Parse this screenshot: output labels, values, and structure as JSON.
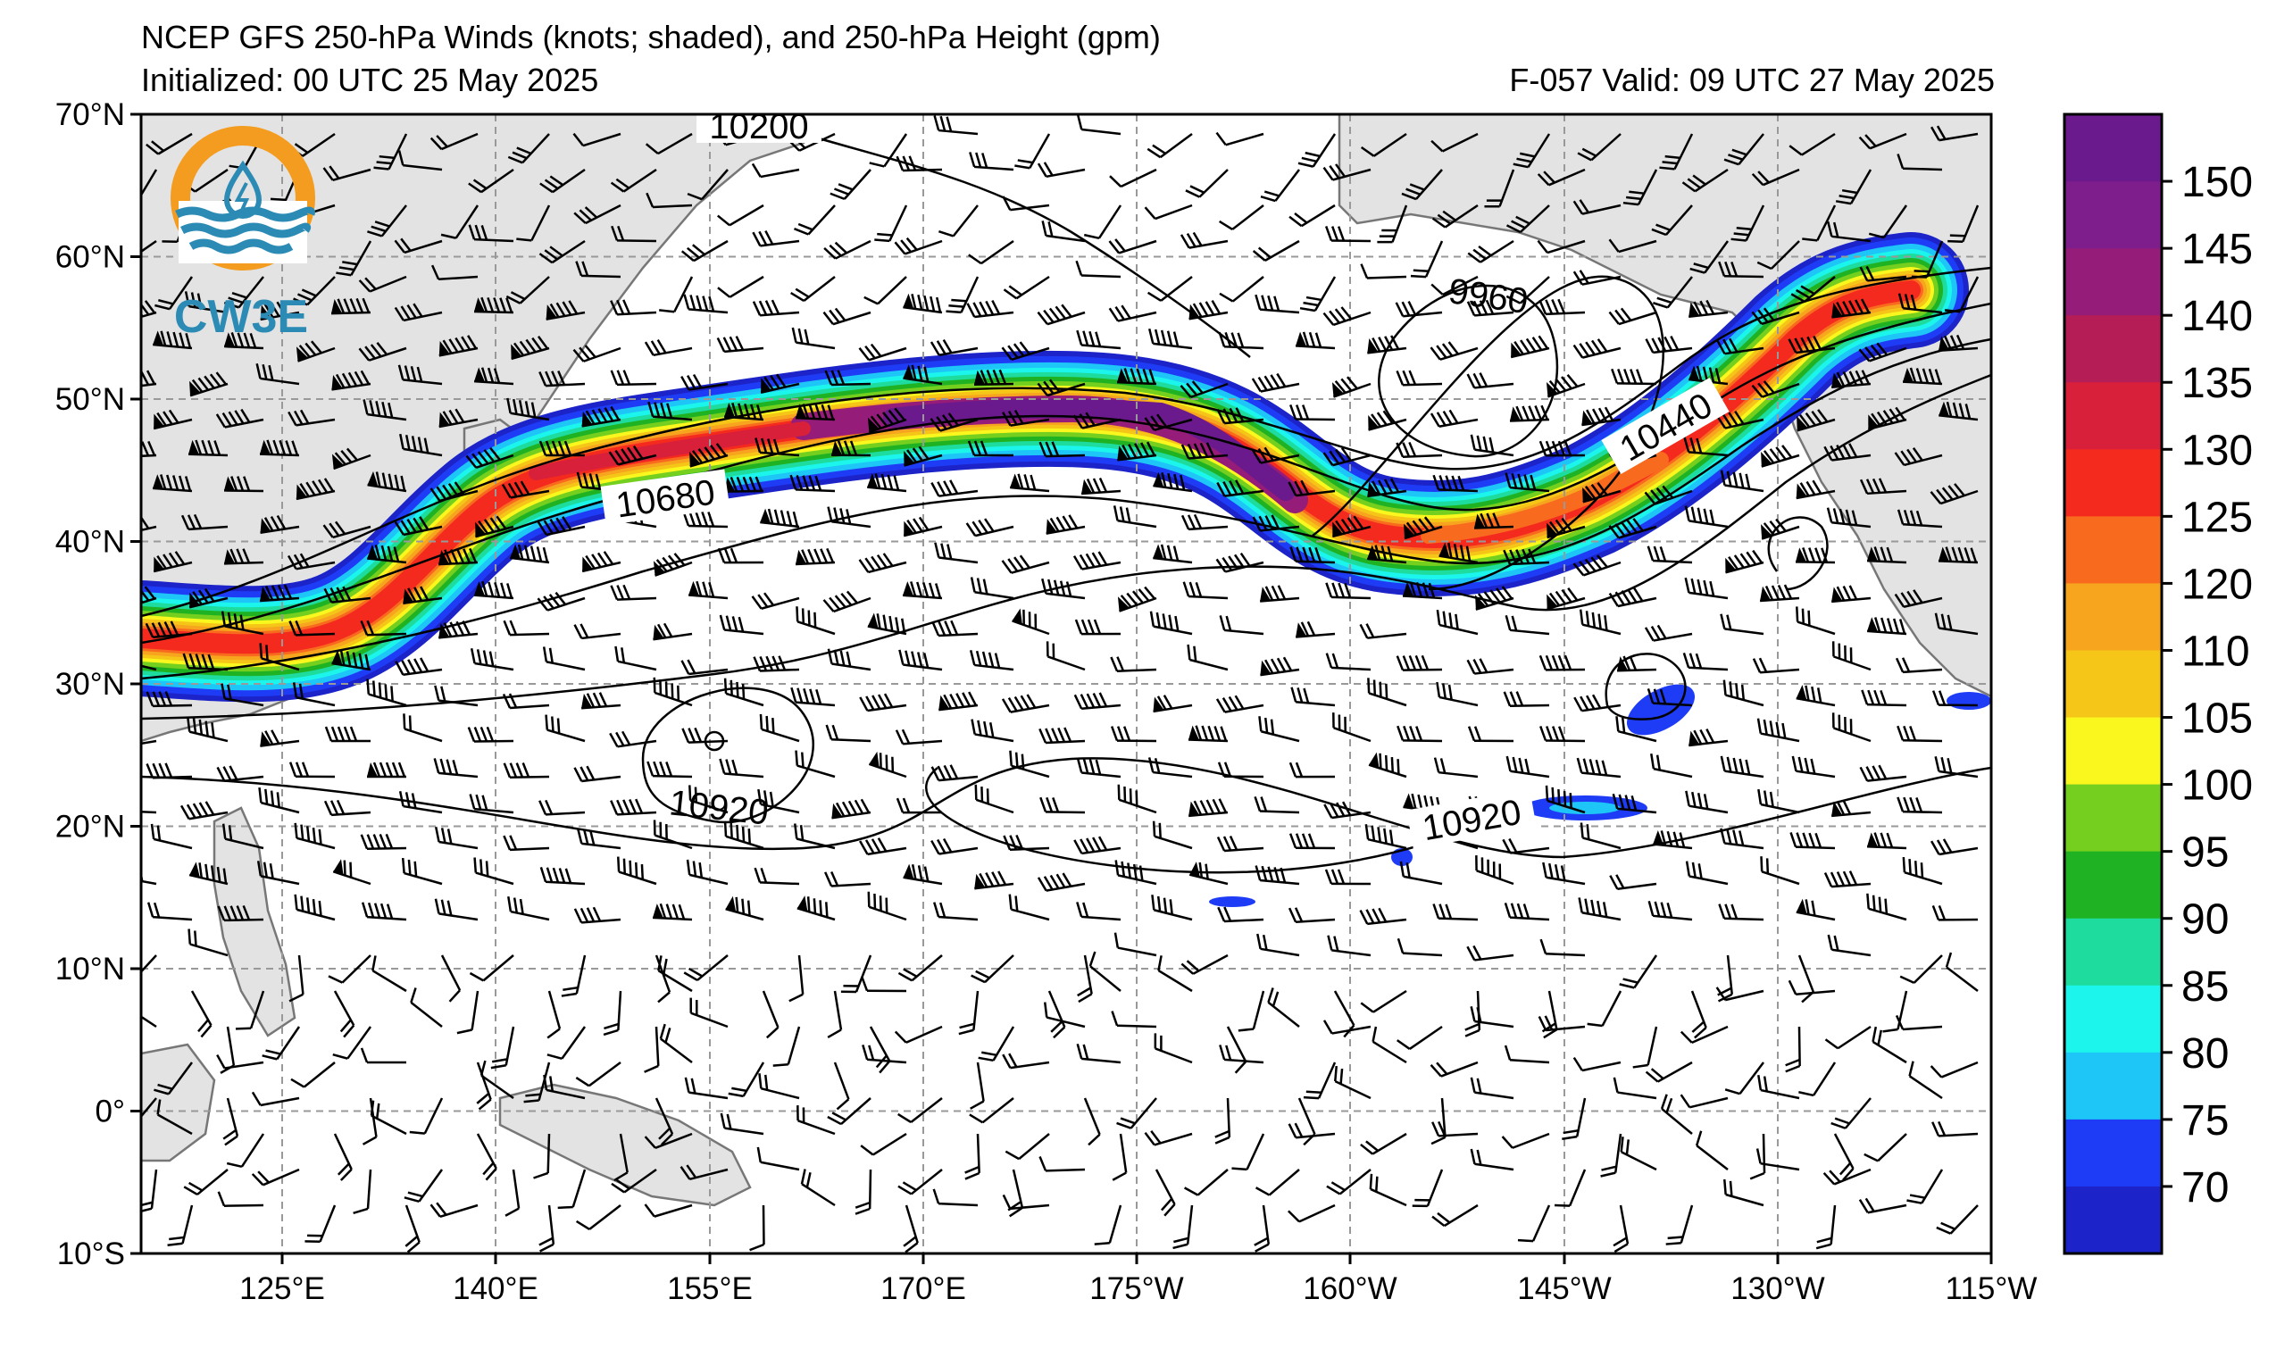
{
  "header": {
    "title": "NCEP GFS 250-hPa Winds (knots; shaded), and 250-hPa Height (gpm)",
    "initialized": "Initialized: 00 UTC 25 May 2025",
    "valid": "F-057  Valid: 09 UTC 27 May 2025"
  },
  "logo": {
    "text": "CW3E",
    "ring_color": "#f39c1f",
    "wave_color": "#2b8bb5"
  },
  "map": {
    "lon_labels": [
      "125°E",
      "140°E",
      "155°E",
      "170°E",
      "175°W",
      "160°W",
      "145°W",
      "130°W",
      "115°W"
    ],
    "lat_labels": [
      "70°N",
      "60°N",
      "50°N",
      "40°N",
      "30°N",
      "20°N",
      "10°N",
      "0°",
      "10°S"
    ],
    "contour_labels": [
      "10200",
      "9960",
      "10680",
      "10440",
      "10920",
      "10920"
    ],
    "land_color": "#e3e3e3",
    "coast_color": "#777777",
    "grid_color": "#999999"
  },
  "colorbar": {
    "ticks": [
      "150",
      "145",
      "140",
      "135",
      "130",
      "125",
      "120",
      "110",
      "105",
      "100",
      "95",
      "90",
      "85",
      "80",
      "75",
      "70"
    ],
    "colors": [
      "#6a1a8c",
      "#7e1d8c",
      "#951c79",
      "#b41d56",
      "#d8203a",
      "#f52a1f",
      "#f86a1e",
      "#f7a41e",
      "#f5c518",
      "#faf71e",
      "#74cf1e",
      "#1fb223",
      "#1ddc9e",
      "#1cf5ec",
      "#1ec5f7",
      "#1e3cf5",
      "#1c23c8"
    ]
  }
}
